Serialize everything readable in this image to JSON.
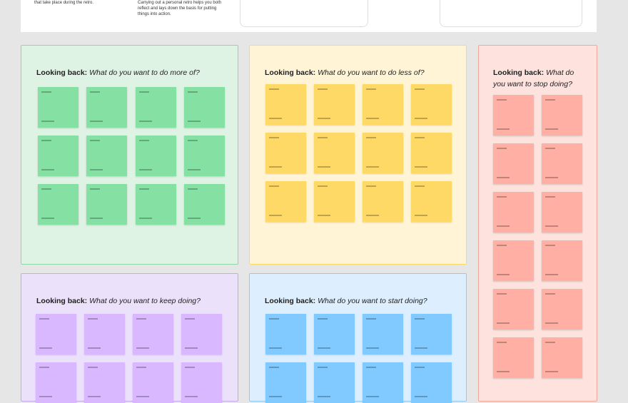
{
  "top": {
    "left_text": "that take place during the retro.",
    "middle_text": "Carrying out a personal retro helps you both reflect and lays down the basis for putting things into action."
  },
  "sections": [
    {
      "label": "Looking back:",
      "question": "What do you want to do more of?"
    },
    {
      "label": "Looking back:",
      "question": "What do you want to do less of?"
    },
    {
      "label": "Looking back:",
      "question": "What do you want to stop doing?"
    },
    {
      "label": "Looking back:",
      "question": "What do you want to keep doing?"
    },
    {
      "label": "Looking back:",
      "question": "What do you want to start doing?"
    }
  ]
}
